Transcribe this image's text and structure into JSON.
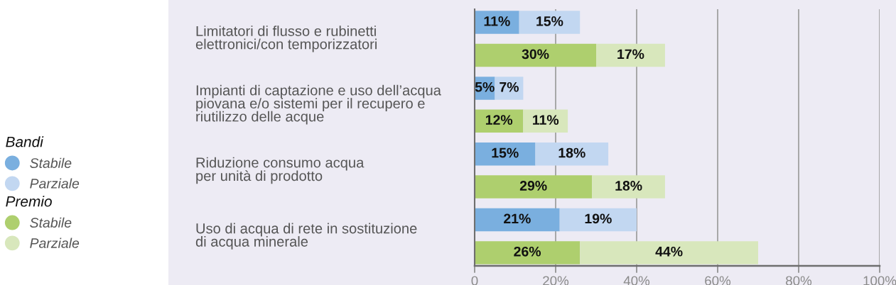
{
  "chart_data": {
    "type": "bar",
    "orientation": "horizontal",
    "stacked": true,
    "categories": [
      "Limitatori di flusso e rubinetti\nelettronici/con temporizzatori",
      null,
      "Impianti di captazione e uso dell’acqua\npiovana e/o sistemi per il recupero e\nriutilizzo delle acque",
      null,
      "Riduzione consumo acqua\nper unità di prodotto",
      null,
      "Uso di acqua di rete in sostituzione\ndi acqua minerale",
      null
    ],
    "series": [
      {
        "name": "Stabile",
        "color": "#7aafdf",
        "values": [
          11,
          null,
          5,
          null,
          15,
          null,
          21,
          null
        ],
        "value_labels": [
          "11%",
          null,
          "5%",
          null,
          "15%",
          null,
          "21%",
          null
        ]
      },
      {
        "name": "Parziale",
        "color": "#c2d7f1",
        "values": [
          15,
          null,
          7,
          null,
          18,
          null,
          19,
          null
        ],
        "value_labels": [
          "15%",
          null,
          "7%",
          null,
          "18%",
          null,
          "19%",
          null
        ]
      },
      {
        "name": "Stabile",
        "color": "#aecf6e",
        "values": [
          null,
          30,
          null,
          12,
          null,
          29,
          null,
          26
        ],
        "value_labels": [
          null,
          "30%",
          null,
          "12%",
          null,
          "29%",
          null,
          "26%"
        ]
      },
      {
        "name": "Parziale",
        "color": "#d8e7bc",
        "values": [
          null,
          17,
          null,
          11,
          null,
          18,
          null,
          44
        ],
        "value_labels": [
          null,
          "17%",
          null,
          "11%",
          null,
          "18%",
          null,
          "44%"
        ]
      }
    ],
    "xlim": [
      0,
      100
    ],
    "xticks": [
      0,
      {
        "value": 20,
        "label": "20%"
      },
      {
        "value": 40,
        "label": "40%"
      },
      {
        "value": 60,
        "label": "60%"
      },
      {
        "value": 80,
        "label": "80%"
      },
      {
        "value": 100,
        "label": "100%"
      }
    ],
    "grid": "x",
    "legend": "left",
    "annotations": [
      "Bandi",
      "Premio"
    ]
  }
}
